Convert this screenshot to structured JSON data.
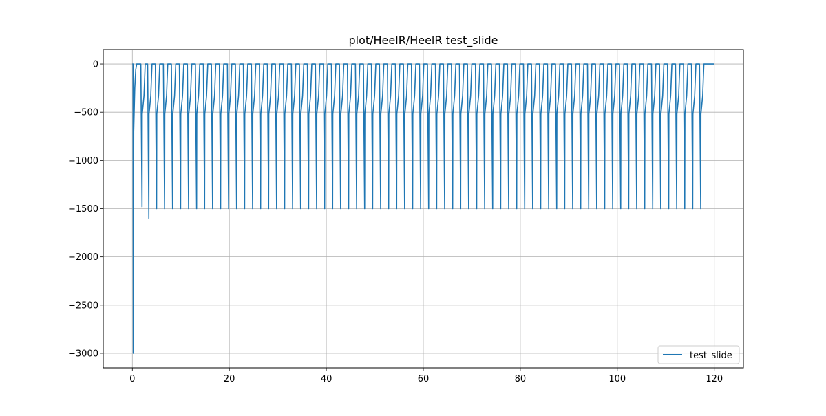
{
  "chart_data": {
    "type": "line",
    "title": "plot/HeelR/HeelR test_slide",
    "xlabel": "",
    "ylabel": "",
    "xlim": [
      -6,
      126
    ],
    "ylim": [
      -3150,
      150
    ],
    "xticks": [
      0,
      20,
      40,
      60,
      80,
      100,
      120
    ],
    "yticks": [
      0,
      -500,
      -1000,
      -1500,
      -2000,
      -2500,
      -3000
    ],
    "xtick_labels": [
      "0",
      "20",
      "40",
      "60",
      "80",
      "100",
      "120"
    ],
    "ytick_labels": [
      "0",
      "−500",
      "−1000",
      "−1500",
      "−2000",
      "−2500",
      "−3000"
    ],
    "grid": true,
    "legend": {
      "position": "bottom-right",
      "entries": [
        "test_slide"
      ]
    },
    "series": [
      {
        "name": "test_slide",
        "color": "#1f77b4",
        "pattern": {
          "first_spike": {
            "x": 0.2,
            "min": -3000
          },
          "early_spikes": [
            {
              "x": 2.0,
              "min": -1480
            },
            {
              "x": 3.4,
              "min": -1600
            }
          ],
          "period": 1.65,
          "start": 5.0,
          "end": 118.0,
          "spike_min": -1500,
          "recovery_level": -520,
          "final_level": 0
        }
      }
    ]
  }
}
